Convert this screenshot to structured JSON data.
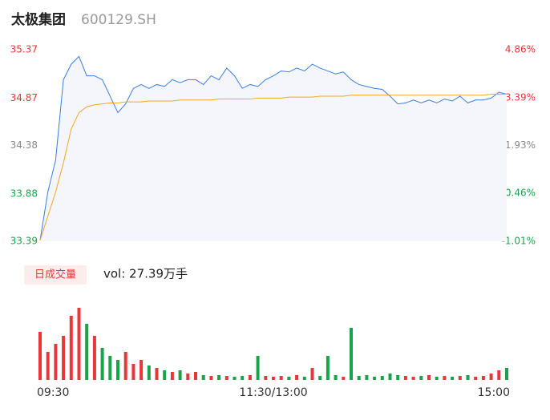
{
  "header": {
    "title": "太极集团",
    "code": "600129.SH"
  },
  "volume_button": "日成交量",
  "volume_text": "vol: 27.39万手",
  "chart_data": [
    {
      "type": "line",
      "x": [
        0,
        4,
        8,
        12,
        16,
        20,
        24,
        28,
        32,
        36,
        40,
        44,
        48,
        52,
        56,
        60,
        64,
        68,
        72,
        76,
        80,
        84,
        88,
        92,
        96,
        100,
        104,
        108,
        112,
        116,
        120,
        124,
        128,
        132,
        136,
        140,
        144,
        148,
        152,
        156,
        160,
        164,
        168,
        172,
        176,
        180,
        184,
        188,
        192,
        196,
        200,
        204,
        208,
        212,
        216,
        220,
        224,
        228,
        232,
        236,
        240
      ],
      "xlim": [
        0,
        240
      ],
      "xticks": [
        {
          "value": 0,
          "label": "09:30"
        },
        {
          "value": 120,
          "label": "11:30/13:00"
        },
        {
          "value": 240,
          "label": "15:00"
        }
      ],
      "ylim": [
        33.39,
        35.37
      ],
      "yticks": [
        33.39,
        33.88,
        34.38,
        34.87,
        35.37
      ],
      "ytick_colors": [
        "#1aa34a",
        "#1aa34a",
        "#888888",
        "#e8373a",
        "#e8373a"
      ],
      "y2lim": [
        -1.01,
        4.86
      ],
      "y2ticks": [
        {
          "value": -1.01,
          "label": "-1.01%"
        },
        {
          "value": 0.46,
          "label": "0.46%"
        },
        {
          "value": 1.93,
          "label": "1.93%"
        },
        {
          "value": 3.39,
          "label": "3.39%"
        },
        {
          "value": 4.86,
          "label": "4.86%"
        }
      ],
      "y2tick_colors": [
        "#1aa34a",
        "#1aa34a",
        "#888888",
        "#e8373a",
        "#e8373a"
      ],
      "area_color": "#f4f6fc",
      "series": [
        {
          "name": "price",
          "color": "#3b7de0",
          "values": [
            33.4,
            33.9,
            34.23,
            35.06,
            35.22,
            35.3,
            35.1,
            35.1,
            35.06,
            34.89,
            34.72,
            34.81,
            34.97,
            35.01,
            34.97,
            35.01,
            34.99,
            35.06,
            35.03,
            35.06,
            35.06,
            35.01,
            35.1,
            35.06,
            35.18,
            35.1,
            34.97,
            35.01,
            34.99,
            35.06,
            35.1,
            35.15,
            35.14,
            35.18,
            35.15,
            35.22,
            35.18,
            35.15,
            35.12,
            35.14,
            35.06,
            35.01,
            34.99,
            34.97,
            34.96,
            34.89,
            34.81,
            34.82,
            34.85,
            34.82,
            34.85,
            34.82,
            34.86,
            34.84,
            34.89,
            34.82,
            34.85,
            34.85,
            34.87,
            34.93,
            34.91
          ]
        },
        {
          "name": "average",
          "color": "#f0a820",
          "values": [
            33.4,
            33.65,
            33.9,
            34.2,
            34.55,
            34.72,
            34.78,
            34.8,
            34.81,
            34.82,
            34.82,
            34.83,
            34.83,
            34.83,
            34.84,
            34.84,
            34.84,
            34.84,
            34.85,
            34.85,
            34.85,
            34.85,
            34.85,
            34.86,
            34.86,
            34.86,
            34.86,
            34.86,
            34.87,
            34.87,
            34.87,
            34.87,
            34.88,
            34.88,
            34.88,
            34.88,
            34.89,
            34.89,
            34.89,
            34.89,
            34.9,
            34.9,
            34.9,
            34.9,
            34.9,
            34.9,
            34.9,
            34.9,
            34.9,
            34.9,
            34.9,
            34.9,
            34.9,
            34.9,
            34.9,
            34.9,
            34.9,
            34.9,
            34.91,
            34.91,
            34.91
          ]
        }
      ]
    },
    {
      "type": "bar",
      "ylim": [
        0,
        100
      ],
      "up_color": "#e8373a",
      "down_color": "#1aa34a",
      "values": [
        60,
        35,
        45,
        55,
        80,
        90,
        70,
        55,
        40,
        30,
        25,
        35,
        20,
        25,
        18,
        15,
        12,
        10,
        12,
        8,
        10,
        6,
        5,
        6,
        5,
        4,
        5,
        6,
        30,
        5,
        4,
        5,
        4,
        6,
        4,
        15,
        5,
        30,
        6,
        4,
        65,
        5,
        6,
        4,
        5,
        8,
        6,
        5,
        4,
        5,
        6,
        4,
        5,
        4,
        5,
        6,
        4,
        5,
        8,
        12,
        15
      ]
    }
  ]
}
